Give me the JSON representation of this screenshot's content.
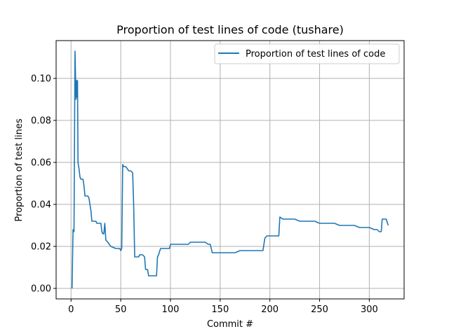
{
  "chart_data": {
    "type": "line",
    "title": "Proportion of test lines of code (tushare)",
    "xlabel": "Commit #",
    "ylabel": "Proportion of test lines",
    "xlim": [
      -15,
      335
    ],
    "ylim": [
      -0.005,
      0.118
    ],
    "xticks": [
      0,
      50,
      100,
      150,
      200,
      250,
      300
    ],
    "xtick_labels": [
      "0",
      "50",
      "100",
      "150",
      "200",
      "250",
      "300"
    ],
    "yticks": [
      0.0,
      0.02,
      0.04,
      0.06,
      0.08,
      0.1
    ],
    "ytick_labels": [
      "0.00",
      "0.02",
      "0.04",
      "0.06",
      "0.08",
      "0.10"
    ],
    "grid": true,
    "legend_position": "top-right",
    "color": "#1f77b4",
    "series": [
      {
        "name": "Proportion of test lines of code",
        "x": [
          1,
          2,
          3,
          4,
          5,
          5.5,
          6,
          6.5,
          7,
          8,
          9,
          10,
          11,
          12,
          13,
          14,
          17,
          18,
          19,
          20,
          21,
          22,
          25,
          26,
          30,
          31,
          32,
          33,
          34,
          35,
          37,
          40,
          45,
          49,
          50,
          51,
          52,
          53,
          55,
          58,
          60,
          62,
          63,
          64,
          66,
          67,
          68,
          69,
          70,
          72,
          74,
          75,
          77,
          78,
          80,
          83,
          86,
          87,
          88,
          90,
          92,
          95,
          99,
          100,
          105,
          110,
          115,
          118,
          120,
          125,
          130,
          133,
          135,
          138,
          140,
          142,
          150,
          155,
          160,
          165,
          170,
          175,
          180,
          185,
          190,
          193,
          195,
          197,
          200,
          202,
          205,
          207,
          209,
          210,
          213,
          215,
          220,
          225,
          230,
          235,
          240,
          245,
          250,
          255,
          260,
          265,
          270,
          275,
          280,
          285,
          290,
          295,
          300,
          305,
          308,
          310,
          312,
          313,
          315,
          317,
          319
        ],
        "y": [
          0.0,
          0.028,
          0.027,
          0.113,
          0.09,
          0.099,
          0.091,
          0.099,
          0.06,
          0.057,
          0.053,
          0.052,
          0.052,
          0.052,
          0.049,
          0.044,
          0.044,
          0.043,
          0.04,
          0.037,
          0.032,
          0.032,
          0.032,
          0.031,
          0.031,
          0.027,
          0.026,
          0.026,
          0.031,
          0.023,
          0.022,
          0.02,
          0.019,
          0.019,
          0.018,
          0.019,
          0.059,
          0.058,
          0.058,
          0.056,
          0.056,
          0.055,
          0.04,
          0.015,
          0.015,
          0.015,
          0.015,
          0.016,
          0.016,
          0.016,
          0.015,
          0.009,
          0.009,
          0.006,
          0.006,
          0.006,
          0.006,
          0.015,
          0.016,
          0.019,
          0.019,
          0.019,
          0.019,
          0.021,
          0.021,
          0.021,
          0.021,
          0.021,
          0.022,
          0.022,
          0.022,
          0.022,
          0.022,
          0.021,
          0.021,
          0.017,
          0.017,
          0.017,
          0.017,
          0.017,
          0.018,
          0.018,
          0.018,
          0.018,
          0.018,
          0.018,
          0.024,
          0.025,
          0.025,
          0.025,
          0.025,
          0.025,
          0.025,
          0.034,
          0.033,
          0.033,
          0.033,
          0.033,
          0.032,
          0.032,
          0.032,
          0.032,
          0.031,
          0.031,
          0.031,
          0.031,
          0.03,
          0.03,
          0.03,
          0.03,
          0.029,
          0.029,
          0.029,
          0.028,
          0.028,
          0.027,
          0.027,
          0.033,
          0.033,
          0.033,
          0.03
        ]
      }
    ]
  }
}
